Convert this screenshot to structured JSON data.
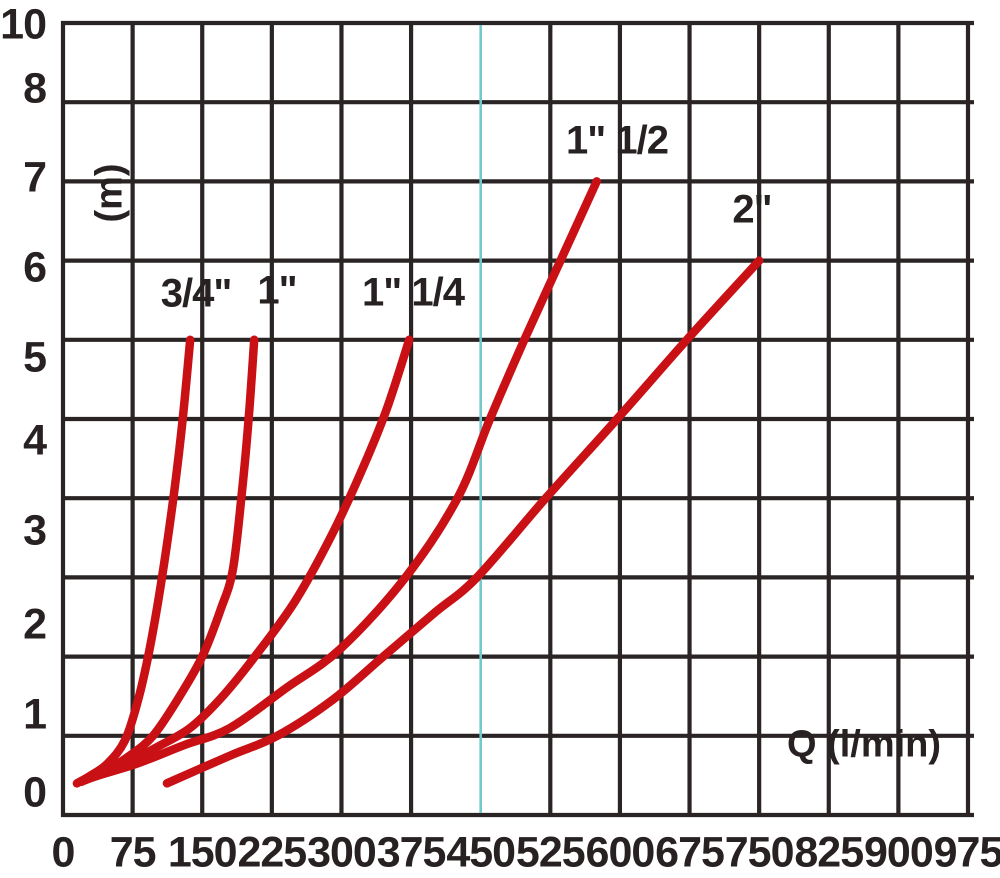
{
  "chart_data": {
    "type": "line",
    "title": "",
    "xlabel": "Q (l/min)",
    "ylabel": "(m)",
    "xlim": [
      0,
      975
    ],
    "ylim": [
      0,
      10
    ],
    "grid": "on",
    "legend_position": "labels-on-curves",
    "x_tick_labels": [
      "0",
      "75",
      "150",
      "225",
      "300",
      "375",
      "450",
      "525",
      "600",
      "675",
      "750",
      "825",
      "900",
      "975"
    ],
    "y_tick_labels": [
      "10",
      "8",
      "7",
      "6",
      "5",
      "4",
      "3",
      "2",
      "1",
      "0"
    ],
    "colors": {
      "background": "#ffffff",
      "grid": "#2a2425",
      "text": "#272122",
      "curve": "#c91015",
      "highlight_line": "#72c8cc"
    },
    "highlight_vertical_gridline_at_x": 450,
    "series": [
      {
        "name": "3/4\"",
        "points": [
          [
            15,
            0.4
          ],
          [
            30,
            0.5
          ],
          [
            48,
            0.65
          ],
          [
            67,
            0.95
          ],
          [
            82,
            1.5
          ],
          [
            95,
            2.2
          ],
          [
            108,
            3.1
          ],
          [
            120,
            4.1
          ],
          [
            129,
            5.0
          ],
          [
            137,
            6.0
          ]
        ]
      },
      {
        "name": "1\"",
        "points": [
          [
            20,
            0.42
          ],
          [
            45,
            0.55
          ],
          [
            72,
            0.75
          ],
          [
            97,
            1.0
          ],
          [
            123,
            1.45
          ],
          [
            150,
            2.0
          ],
          [
            170,
            2.6
          ],
          [
            183,
            3.1
          ],
          [
            193,
            4.1
          ],
          [
            200,
            5.0
          ],
          [
            206,
            6.0
          ]
        ]
      },
      {
        "name": "1\" 1/4",
        "points": [
          [
            26,
            0.45
          ],
          [
            60,
            0.6
          ],
          [
            100,
            0.85
          ],
          [
            137,
            1.1
          ],
          [
            172,
            1.5
          ],
          [
            210,
            2.05
          ],
          [
            250,
            2.7
          ],
          [
            288,
            3.5
          ],
          [
            320,
            4.3
          ],
          [
            348,
            5.1
          ],
          [
            373,
            6.0
          ]
        ]
      },
      {
        "name": "1\" 1/2",
        "points": [
          [
            32,
            0.48
          ],
          [
            80,
            0.65
          ],
          [
            130,
            0.88
          ],
          [
            180,
            1.1
          ],
          [
            240,
            1.6
          ],
          [
            299,
            2.1
          ],
          [
            369,
            3.0
          ],
          [
            425,
            4.0
          ],
          [
            460,
            5.0
          ],
          [
            497,
            6.0
          ],
          [
            536,
            7.0
          ],
          [
            575,
            8.0
          ]
        ]
      },
      {
        "name": "2\"",
        "points": [
          [
            112,
            0.4
          ],
          [
            180,
            0.75
          ],
          [
            231,
            1.0
          ],
          [
            290,
            1.45
          ],
          [
            345,
            2.0
          ],
          [
            400,
            2.55
          ],
          [
            446,
            3.0
          ],
          [
            520,
            4.0
          ],
          [
            597,
            5.0
          ],
          [
            672,
            6.0
          ],
          [
            750,
            7.0
          ]
        ]
      }
    ]
  }
}
